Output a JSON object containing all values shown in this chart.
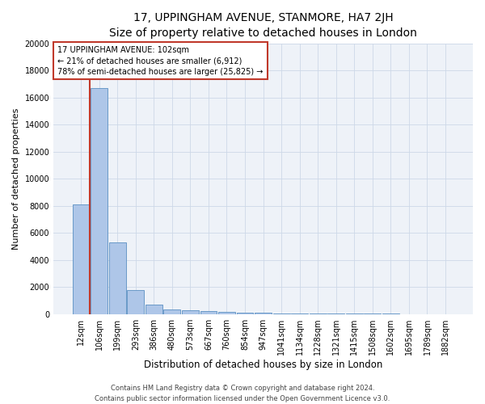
{
  "title_line1": "17, UPPINGHAM AVENUE, STANMORE, HA7 2JH",
  "title_line2": "Size of property relative to detached houses in London",
  "xlabel": "Distribution of detached houses by size in London",
  "ylabel": "Number of detached properties",
  "bar_labels": [
    "12sqm",
    "106sqm",
    "199sqm",
    "293sqm",
    "386sqm",
    "480sqm",
    "573sqm",
    "667sqm",
    "760sqm",
    "854sqm",
    "947sqm",
    "1041sqm",
    "1134sqm",
    "1228sqm",
    "1321sqm",
    "1415sqm",
    "1508sqm",
    "1602sqm",
    "1695sqm",
    "1789sqm",
    "1882sqm"
  ],
  "bar_values": [
    8100,
    16700,
    5300,
    1750,
    700,
    350,
    275,
    200,
    150,
    100,
    70,
    50,
    35,
    25,
    18,
    12,
    8,
    6,
    4,
    3,
    2
  ],
  "bar_color": "#aec6e8",
  "bar_edge_color": "#5a8fc2",
  "annotation_line1": "17 UPPINGHAM AVENUE: 102sqm",
  "annotation_line2": "← 21% of detached houses are smaller (6,912)",
  "annotation_line3": "78% of semi-detached houses are larger (25,825) →",
  "vline_color": "#c0392b",
  "annotation_box_color": "#c0392b",
  "ylim": [
    0,
    20000
  ],
  "yticks": [
    0,
    2000,
    4000,
    6000,
    8000,
    10000,
    12000,
    14000,
    16000,
    18000,
    20000
  ],
  "footer_line1": "Contains HM Land Registry data © Crown copyright and database right 2024.",
  "footer_line2": "Contains public sector information licensed under the Open Government Licence v3.0.",
  "grid_color": "#cdd8e8",
  "background_color": "#eef2f8",
  "fig_width": 6.0,
  "fig_height": 5.0,
  "title1_fontsize": 10,
  "title2_fontsize": 8.5,
  "ylabel_fontsize": 8,
  "xlabel_fontsize": 8.5,
  "tick_fontsize": 7,
  "ann_fontsize": 7,
  "footer_fontsize": 6
}
